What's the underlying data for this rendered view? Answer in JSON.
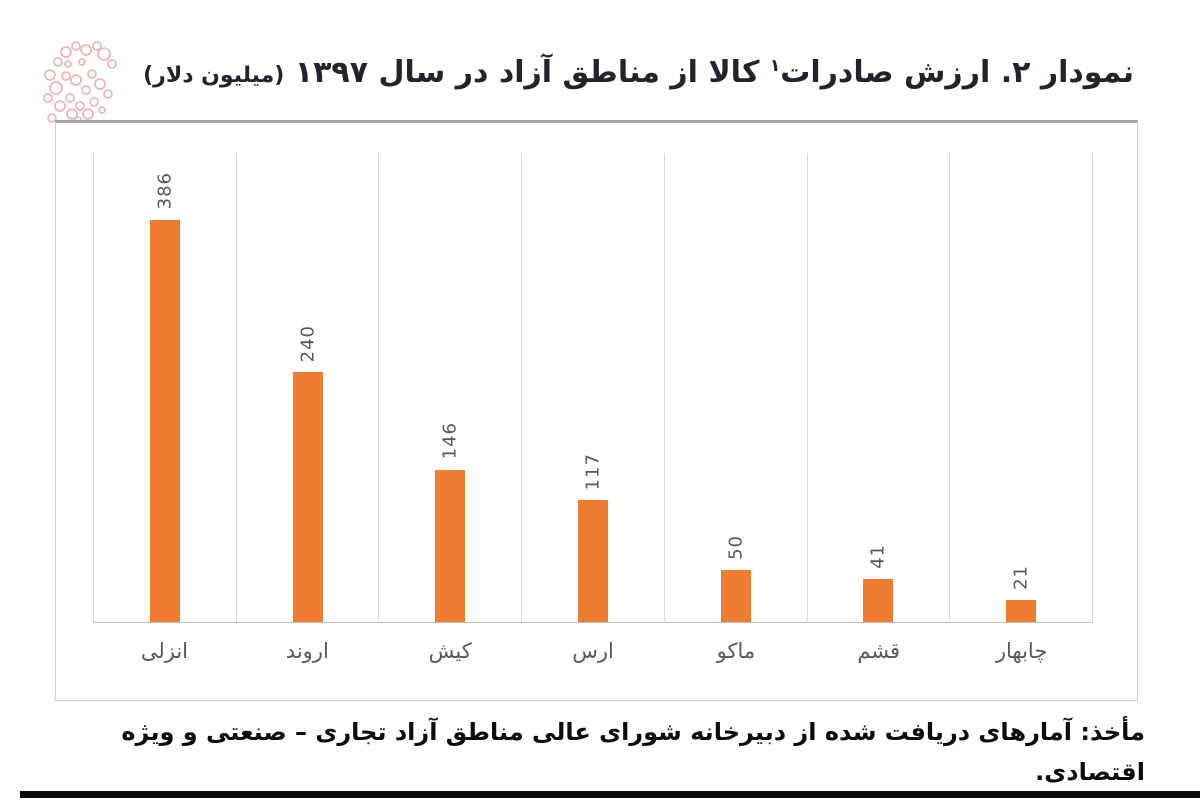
{
  "title": {
    "main": "نمودار ۲. ارزش صادرات",
    "footnote_mark": "۱",
    "rest": " کالا از مناطق آزاد در سال ۱۳۹۷ ",
    "unit": "(میلیون دلار)"
  },
  "chart_data": {
    "type": "bar",
    "title": "نمودار ۲. ارزش صادرات کالا از مناطق آزاد در سال ۱۳۹۷ (میلیون دلار)",
    "categories": [
      "انزلی",
      "اروند",
      "کیش",
      "ارس",
      "ماکو",
      "قشم",
      "چابهار"
    ],
    "values": [
      386,
      240,
      146,
      117,
      50,
      41,
      21
    ],
    "xlabel": "",
    "ylabel": "میلیون دلار",
    "ylim": [
      0,
      450
    ],
    "grid": true,
    "legend": false,
    "value_labels_rotated": true
  },
  "source": {
    "label": "مأخذ:",
    "text": " آمارهای دریافت شده از دبیرخانه شورای عالی مناطق آزاد تجاری – صنعتی و ویژه اقتصادی."
  },
  "colors": {
    "bar": "#ED7D31",
    "value_label": "#595959",
    "category_label": "#595959",
    "gridline": "#D9D9D9",
    "axis_line": "#BFBFBF",
    "title_text": "#23232E",
    "watermark": "#E6A1A1"
  }
}
